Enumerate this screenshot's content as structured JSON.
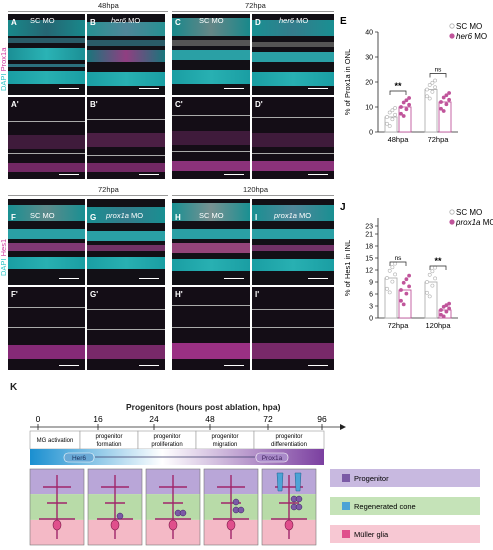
{
  "top": {
    "time_left": "48hpa",
    "time_right": "72hpa",
    "panels": [
      {
        "id": "A",
        "title": "SC MO",
        "italic": false
      },
      {
        "id": "B",
        "title": "her6",
        "title_suffix": " MO",
        "italic": true
      },
      {
        "id": "C",
        "title": "SC MO",
        "italic": false
      },
      {
        "id": "D",
        "title": "her6",
        "title_suffix": " MO",
        "italic": true
      }
    ],
    "sub_panels": [
      "A'",
      "B'",
      "C'",
      "D'"
    ],
    "side_label_dapi": "DAPI",
    "side_label_marker": "Prox1a"
  },
  "middle": {
    "time_left": "72hpa",
    "time_right": "120hpa",
    "panels": [
      {
        "id": "F",
        "title": "SC MO",
        "italic": false
      },
      {
        "id": "G",
        "title": "prox1a",
        "title_suffix": " MO",
        "italic": true
      },
      {
        "id": "H",
        "title": "SC MO",
        "italic": false
      },
      {
        "id": "I",
        "title": "prox1a",
        "title_suffix": " MO",
        "italic": true
      }
    ],
    "sub_panels": [
      "F'",
      "G'",
      "H'",
      "I'"
    ],
    "side_label_dapi": "DAPI",
    "side_label_marker": "Hes1"
  },
  "chart_data": [
    {
      "panel": "E",
      "type": "bar",
      "ylabel": "% of Prox1a in ONL",
      "ylim": [
        0,
        40
      ],
      "yticks": [
        0,
        10,
        20,
        30,
        40
      ],
      "categories": [
        "48hpa",
        "72hpa"
      ],
      "series": [
        {
          "name": "SC MO",
          "values": [
            6,
            17
          ]
        },
        {
          "name": "her6 MO",
          "values": [
            10,
            12
          ]
        }
      ],
      "significance": [
        "**",
        "ns"
      ],
      "colors": {
        "sc": "#b0b0b0",
        "mo": "#c0559b"
      }
    },
    {
      "panel": "J",
      "type": "bar",
      "ylabel": "% of Hes1 in INL",
      "ylim": [
        0,
        25
      ],
      "yticks": [
        0,
        3,
        6,
        9,
        12,
        15,
        18,
        21,
        23
      ],
      "categories": [
        "72hpa",
        "120hpa"
      ],
      "series": [
        {
          "name": "SC MO",
          "values": [
            10,
            9
          ]
        },
        {
          "name": "prox1a MO",
          "values": [
            7,
            2
          ]
        }
      ],
      "significance": [
        "ns",
        "**"
      ],
      "colors": {
        "sc": "#b0b0b0",
        "mo": "#c0559b"
      }
    }
  ],
  "schematic": {
    "panel": "K",
    "title": "Progenitors (hours post ablation, hpa)",
    "timepoints": [
      "0",
      "16",
      "24",
      "48",
      "72",
      "96"
    ],
    "stages": [
      "MG activation",
      "progenitor formation",
      "progenitor proliferation",
      "progenitor migration",
      "progenitor differentiation"
    ],
    "gene_left": "Her6",
    "gene_right": "Prox1a",
    "legend": [
      {
        "label": "Progenitor",
        "color": "#7b5aa6"
      },
      {
        "label": "Regenerated cone",
        "color": "#4da3d6"
      },
      {
        "label": "Müller glia",
        "color": "#e04f8c"
      }
    ]
  }
}
